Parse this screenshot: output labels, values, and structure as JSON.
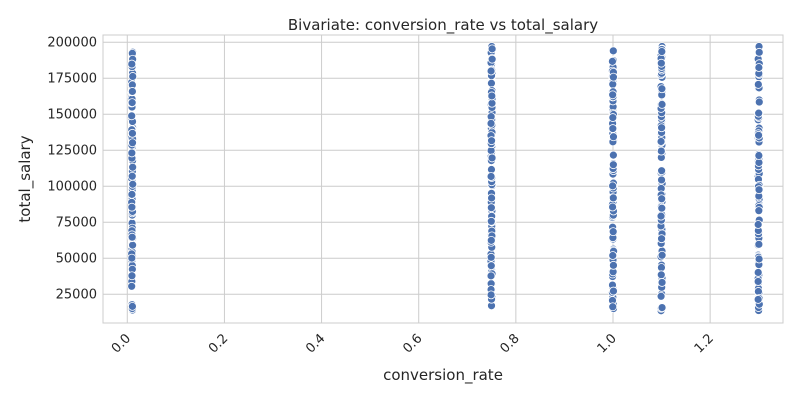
{
  "chart_data": {
    "type": "scatter",
    "title": "Bivariate: conversion_rate vs total_salary",
    "xlabel": "conversion_rate",
    "ylabel": "total_salary",
    "xlim": [
      -0.05,
      1.35
    ],
    "ylim": [
      5000,
      205000
    ],
    "xticks": [
      0.0,
      0.2,
      0.4,
      0.6,
      0.8,
      1.0,
      1.2
    ],
    "xtick_labels": [
      "0.0",
      "0.2",
      "0.4",
      "0.6",
      "0.8",
      "1.0",
      "1.2"
    ],
    "yticks": [
      25000,
      50000,
      75000,
      100000,
      125000,
      150000,
      175000,
      200000
    ],
    "ytick_labels": [
      "25000",
      "50000",
      "75000",
      "100000",
      "125000",
      "150000",
      "175000",
      "200000"
    ],
    "grid": true,
    "point_color": "#4c72b0",
    "grid_color": "#cccccc",
    "columns": [
      {
        "x": 0.01,
        "y_min": 14000,
        "y_max": 193000
      },
      {
        "x": 0.75,
        "y_min": 17000,
        "y_max": 197000
      },
      {
        "x": 1.0,
        "y_min": 15000,
        "y_max": 194000
      },
      {
        "x": 1.1,
        "y_min": 13500,
        "y_max": 197000
      },
      {
        "x": 1.3,
        "y_min": 13500,
        "y_max": 197000
      }
    ],
    "points_per_column": 95
  }
}
